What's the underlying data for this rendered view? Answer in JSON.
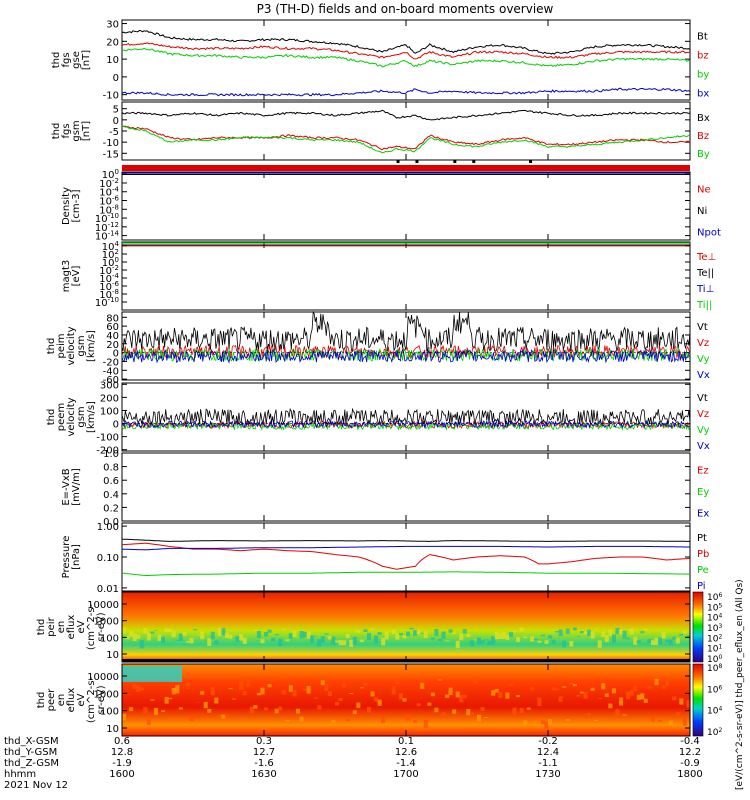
{
  "title": "P3 (TH-D) fields and on-board moments overview",
  "date_label": "2021 Nov 12",
  "colors": {
    "black": "#000000",
    "red": "#e00000",
    "green": "#00d000",
    "blue": "#0000c8",
    "spectro_bg": "#e83000"
  },
  "chart_data": [
    {
      "id": "fgs-gse",
      "type": "line",
      "ylabel": [
        "thd",
        "fgs",
        "gse",
        "[nT]"
      ],
      "ylim": [
        -13,
        32
      ],
      "yticks": [
        30,
        20,
        10,
        0,
        -10
      ],
      "xlim": [
        0,
        120
      ],
      "series": [
        {
          "name": "Bt",
          "color": "#000000",
          "x": [
            0,
            5,
            10,
            15,
            20,
            25,
            30,
            35,
            40,
            45,
            50,
            55,
            60,
            62,
            65,
            70,
            75,
            80,
            85,
            90,
            95,
            100,
            105,
            110,
            115,
            120
          ],
          "y": [
            25,
            26,
            22,
            21,
            21,
            20,
            21,
            21,
            20,
            19,
            17,
            14,
            18,
            13,
            18,
            14,
            17,
            18,
            16,
            13,
            14,
            17,
            18,
            18,
            17,
            16
          ]
        },
        {
          "name": "bz",
          "color": "#e00000",
          "x": [
            0,
            5,
            10,
            15,
            20,
            25,
            30,
            35,
            40,
            45,
            50,
            55,
            60,
            62,
            65,
            70,
            75,
            80,
            85,
            90,
            95,
            100,
            105,
            110,
            115,
            120
          ],
          "y": [
            18,
            19,
            17,
            16,
            16,
            16,
            17,
            16,
            16,
            15,
            13,
            11,
            14,
            10,
            14,
            11,
            14,
            14,
            13,
            11,
            11,
            13,
            14,
            14,
            14,
            14
          ]
        },
        {
          "name": "by",
          "color": "#00d000",
          "x": [
            0,
            5,
            10,
            15,
            20,
            25,
            30,
            35,
            40,
            45,
            50,
            55,
            60,
            62,
            65,
            70,
            75,
            80,
            85,
            90,
            95,
            100,
            105,
            110,
            115,
            120
          ],
          "y": [
            15,
            16,
            13,
            12,
            12,
            11,
            11,
            12,
            11,
            11,
            9,
            6,
            9,
            6,
            9,
            7,
            9,
            9,
            8,
            6,
            7,
            9,
            10,
            10,
            10,
            9
          ]
        },
        {
          "name": "bx",
          "color": "#0000c8",
          "x": [
            0,
            5,
            10,
            15,
            20,
            25,
            30,
            35,
            40,
            45,
            50,
            55,
            60,
            62,
            65,
            70,
            75,
            80,
            85,
            90,
            95,
            100,
            105,
            110,
            115,
            120
          ],
          "y": [
            -9,
            -9,
            -10,
            -10,
            -10,
            -10,
            -10,
            -10,
            -10,
            -10,
            -9,
            -8,
            -9,
            -7,
            -9,
            -8,
            -9,
            -9,
            -9,
            -8,
            -8,
            -8,
            -7,
            -7,
            -7,
            -8
          ]
        }
      ]
    },
    {
      "id": "fgs-gsm",
      "type": "line",
      "ylabel": [
        "thd",
        "fgs",
        "gsm",
        "[nT]"
      ],
      "ylim": [
        -18,
        8
      ],
      "yticks": [
        5,
        0,
        -5,
        -10,
        -15
      ],
      "xlim": [
        0,
        120
      ],
      "series": [
        {
          "name": "Bx",
          "color": "#000000",
          "x": [
            0,
            5,
            10,
            15,
            20,
            25,
            30,
            35,
            40,
            45,
            50,
            55,
            58,
            62,
            65,
            70,
            75,
            80,
            85,
            90,
            95,
            100,
            105,
            110,
            115,
            120
          ],
          "y": [
            3,
            3,
            2,
            3,
            2,
            3,
            2,
            3,
            3,
            2,
            3,
            4,
            1,
            2,
            0,
            1,
            2,
            3,
            4,
            3,
            2,
            2,
            3,
            3,
            3,
            3
          ]
        },
        {
          "name": "Bz",
          "color": "#e00000",
          "x": [
            0,
            5,
            10,
            15,
            20,
            25,
            30,
            35,
            40,
            45,
            50,
            55,
            58,
            62,
            65,
            70,
            75,
            80,
            85,
            90,
            95,
            100,
            105,
            110,
            115,
            120
          ],
          "y": [
            -3,
            -4,
            -8,
            -9,
            -8,
            -8,
            -8,
            -7,
            -8,
            -8,
            -9,
            -13,
            -12,
            -13,
            -7,
            -10,
            -11,
            -9,
            -8,
            -11,
            -11,
            -10,
            -9,
            -9,
            -10,
            -10
          ]
        },
        {
          "name": "By",
          "color": "#00d000",
          "x": [
            0,
            5,
            10,
            15,
            20,
            25,
            30,
            35,
            40,
            45,
            50,
            55,
            58,
            62,
            65,
            70,
            75,
            80,
            85,
            90,
            95,
            100,
            105,
            110,
            115,
            120
          ],
          "y": [
            -3,
            -5,
            -10,
            -9,
            -9,
            -8,
            -8,
            -8,
            -9,
            -9,
            -10,
            -15,
            -13,
            -14,
            -8,
            -11,
            -12,
            -10,
            -9,
            -12,
            -12,
            -11,
            -10,
            -9,
            -8,
            -7
          ]
        }
      ]
    },
    {
      "id": "density",
      "type": "line",
      "yscale": "log",
      "ylabel": [
        "Density",
        "[cm-3]"
      ],
      "ylim_log": [
        -15,
        0.5
      ],
      "yticks": [
        "10^0",
        "10^-2",
        "10^-4",
        "10^-6",
        "10^-8",
        "10^-10",
        "10^-12",
        "10^-14"
      ],
      "legend": [
        {
          "name": "Ne",
          "color": "#e00000"
        },
        {
          "name": "Ni",
          "color": "#000000"
        },
        {
          "name": "Npot",
          "color": "#0000c8"
        }
      ]
    },
    {
      "id": "temperature",
      "type": "line",
      "yscale": "log",
      "ylabel": [
        "magt3",
        "[eV]"
      ],
      "ylim_log": [
        -12,
        5
      ],
      "yticks": [
        "10^4",
        "10^2",
        "10^0",
        "10^-2",
        "10^-4",
        "10^-6",
        "10^-8",
        "10^-10"
      ],
      "legend": [
        {
          "name": "Te⊥",
          "color": "#e00000"
        },
        {
          "name": "Te||",
          "color": "#000000"
        },
        {
          "name": "Ti⊥",
          "color": "#0000c8"
        },
        {
          "name": "Ti||",
          "color": "#00d000"
        }
      ]
    },
    {
      "id": "peim-velocity",
      "type": "line",
      "ylabel": [
        "thd",
        "peim",
        "velocity",
        "gsm",
        "[km/s]"
      ],
      "ylim": [
        -62,
        92
      ],
      "yticks": [
        80,
        60,
        40,
        20,
        0,
        -20,
        -40,
        -60
      ],
      "legend": [
        {
          "name": "Vt",
          "color": "#000000"
        },
        {
          "name": "Vz",
          "color": "#e00000"
        },
        {
          "name": "Vy",
          "color": "#00d000"
        },
        {
          "name": "Vx",
          "color": "#0000c8"
        }
      ]
    },
    {
      "id": "peem-velocity",
      "type": "line",
      "ylabel": [
        "thd",
        "peem",
        "velocity",
        "gsm",
        "[km/s]"
      ],
      "ylim": [
        -210,
        310
      ],
      "yticks": [
        300,
        200,
        100,
        0,
        -100,
        -200
      ],
      "legend": [
        {
          "name": "Vt",
          "color": "#000000"
        },
        {
          "name": "Vz",
          "color": "#e00000"
        },
        {
          "name": "Vy",
          "color": "#00d000"
        },
        {
          "name": "Vx",
          "color": "#0000c8"
        }
      ]
    },
    {
      "id": "efield",
      "type": "line",
      "ylabel": [
        "E=-VxB",
        "[mV/m]"
      ],
      "ylim": [
        0,
        1.0
      ],
      "yticks": [
        "1.0",
        "0.8",
        "0.6",
        "0.4",
        "0.2",
        "0.0"
      ],
      "legend": [
        {
          "name": "Ez",
          "color": "#e00000"
        },
        {
          "name": "Ey",
          "color": "#00d000"
        },
        {
          "name": "Ex",
          "color": "#0000c8"
        }
      ]
    },
    {
      "id": "pressure",
      "type": "line",
      "yscale": "log",
      "ylabel": [
        "Pressure",
        "[nPa]"
      ],
      "ylim_log": [
        -2.1,
        0.1
      ],
      "yticks": [
        "1.00",
        "0.10",
        "0.01"
      ],
      "series": [
        {
          "name": "Pt",
          "color": "#000000",
          "x": [
            0,
            5,
            10,
            20,
            30,
            40,
            50,
            55,
            60,
            65,
            70,
            80,
            90,
            100,
            110,
            120
          ],
          "y": [
            0.38,
            0.35,
            0.32,
            0.34,
            0.33,
            0.34,
            0.33,
            0.34,
            0.33,
            0.32,
            0.34,
            0.33,
            0.32,
            0.33,
            0.33,
            0.32
          ]
        },
        {
          "name": "Pb",
          "color": "#e00000",
          "x": [
            0,
            5,
            10,
            15,
            20,
            25,
            30,
            35,
            40,
            45,
            50,
            55,
            58,
            62,
            65,
            70,
            75,
            80,
            85,
            88,
            90,
            95,
            100,
            105,
            110,
            115,
            120
          ],
          "y": [
            0.25,
            0.28,
            0.22,
            0.18,
            0.18,
            0.16,
            0.18,
            0.16,
            0.15,
            0.12,
            0.1,
            0.05,
            0.04,
            0.05,
            0.12,
            0.08,
            0.1,
            0.11,
            0.1,
            0.06,
            0.06,
            0.07,
            0.09,
            0.1,
            0.1,
            0.08,
            0.09
          ]
        },
        {
          "name": "Pe",
          "color": "#00d000",
          "x": [
            0,
            5,
            10,
            20,
            30,
            40,
            50,
            60,
            70,
            80,
            90,
            100,
            110,
            120
          ],
          "y": [
            0.03,
            0.025,
            0.027,
            0.028,
            0.03,
            0.03,
            0.032,
            0.032,
            0.033,
            0.032,
            0.03,
            0.03,
            0.029,
            0.028
          ]
        },
        {
          "name": "Pi",
          "color": "#0000c8",
          "x": [
            0,
            5,
            10,
            20,
            30,
            40,
            50,
            60,
            70,
            80,
            90,
            100,
            110,
            120
          ],
          "y": [
            0.18,
            0.17,
            0.19,
            0.19,
            0.2,
            0.2,
            0.21,
            0.22,
            0.22,
            0.22,
            0.21,
            0.22,
            0.22,
            0.21
          ]
        }
      ]
    },
    {
      "id": "peir-spectrogram",
      "type": "heatmap",
      "ylabel": [
        "thd",
        "peir",
        "en",
        "eflux",
        "eV",
        "(cm^2-s-",
        "sr-eV)"
      ],
      "yticks": [
        "10000",
        "1000",
        "100",
        "10"
      ]
    },
    {
      "id": "peer-spectrogram",
      "type": "heatmap",
      "ylabel": [
        "thd",
        "peer",
        "en",
        "eflux",
        "eV",
        "(cm^2-s-",
        "sr-eV)"
      ],
      "yticks": [
        "10000",
        "1000",
        "100",
        "10"
      ]
    }
  ],
  "colorbar": {
    "ticks": [
      "10^6",
      "10^5",
      "10^4",
      "10^3",
      "10^2",
      "10^1",
      "10^0"
    ],
    "ticks_lower": [
      "10^8",
      "10^6",
      "10^4",
      "10^2"
    ],
    "label": "[eV/(cm^2-s-sr-eV)]  thd_peer_eflux_en (All Qs)"
  },
  "x_axis": {
    "row_labels": [
      "thd_X-GSM",
      "thd_Y-GSM",
      "thd_Z-GSM",
      "hhmm"
    ],
    "ticks": [
      {
        "x": 0,
        "values": [
          "0.6",
          "12.8",
          "-1.9",
          "1600"
        ]
      },
      {
        "x": 30,
        "values": [
          "0.3",
          "12.7",
          "-1.6",
          "1630"
        ]
      },
      {
        "x": 60,
        "values": [
          "0.1",
          "12.6",
          "-1.4",
          "1700"
        ]
      },
      {
        "x": 90,
        "values": [
          "-0.2",
          "12.4",
          "-1.1",
          "1730"
        ]
      },
      {
        "x": 120,
        "values": [
          "-0.4",
          "12.2",
          "-0.9",
          "1800"
        ]
      }
    ]
  }
}
